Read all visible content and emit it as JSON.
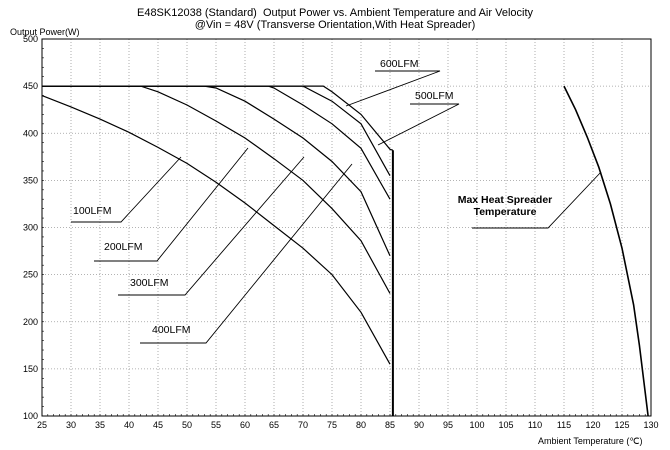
{
  "chart_data": {
    "type": "line",
    "title": "E48SK12038 (Standard)  Output Power vs. Ambient Temperature and Air Velocity",
    "subtitle": "@Vin = 48V (Transverse Orientation,With Heat Spreader)",
    "ylabel": "Output Power(W)",
    "xlabel": "Ambient Temperature (℃)",
    "xlim": [
      25,
      130
    ],
    "ylim": [
      100,
      500
    ],
    "xticks": [
      25,
      30,
      35,
      40,
      45,
      50,
      55,
      60,
      65,
      70,
      75,
      80,
      85,
      90,
      95,
      100,
      105,
      110,
      115,
      120,
      125,
      130
    ],
    "yticks": [
      100,
      150,
      200,
      250,
      300,
      350,
      400,
      450,
      500
    ],
    "grid": true,
    "series": [
      {
        "name": "100LFM",
        "x": [
          25,
          30,
          35,
          40,
          45,
          50,
          55,
          60,
          65,
          70,
          75,
          80,
          85
        ],
        "y": [
          440,
          428,
          415,
          401,
          385,
          368,
          348,
          326,
          302,
          278,
          250,
          210,
          155
        ]
      },
      {
        "name": "200LFM",
        "x": [
          25,
          42,
          45,
          50,
          55,
          60,
          65,
          70,
          75,
          80,
          85
        ],
        "y": [
          450,
          450,
          444,
          430,
          413,
          395,
          373,
          350,
          320,
          286,
          230
        ]
      },
      {
        "name": "300LFM",
        "x": [
          25,
          53,
          55,
          60,
          65,
          70,
          75,
          80,
          85
        ],
        "y": [
          450,
          450,
          448,
          434,
          415,
          395,
          370,
          338,
          270
        ]
      },
      {
        "name": "400LFM",
        "x": [
          25,
          64,
          65,
          70,
          75,
          80,
          85
        ],
        "y": [
          450,
          450,
          448,
          430,
          410,
          384,
          330
        ]
      },
      {
        "name": "500LFM",
        "x": [
          25,
          70,
          75,
          80,
          85
        ],
        "y": [
          450,
          450,
          434,
          410,
          355
        ]
      },
      {
        "name": "600LFM",
        "x": [
          25,
          73.5,
          75,
          80,
          85,
          85.5
        ],
        "y": [
          450,
          450,
          444,
          420,
          383,
          382
        ]
      }
    ],
    "cutoff": {
      "x": 85.5,
      "y": [
        100,
        382
      ]
    },
    "max_spreader_curve": {
      "x": [
        115,
        117,
        119,
        121,
        123,
        125,
        127,
        128,
        129,
        129.5
      ],
      "y": [
        450,
        425,
        396,
        364,
        325,
        278,
        218,
        175,
        125,
        100
      ]
    },
    "annotations": [
      {
        "text": "600LFM",
        "series": "600LFM"
      },
      {
        "text": "500LFM",
        "series": "500LFM"
      },
      {
        "text": "100LFM",
        "series": "100LFM"
      },
      {
        "text": "200LFM",
        "series": "200LFM"
      },
      {
        "text": "300LFM",
        "series": "300LFM"
      },
      {
        "text": "400LFM",
        "series": "400LFM"
      },
      {
        "text": "Max Heat Spreader\nTemperature",
        "series": "max_spreader_curve"
      }
    ]
  }
}
